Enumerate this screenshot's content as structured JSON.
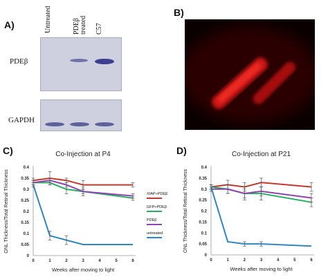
{
  "panels": {
    "A": {
      "label": "A)",
      "lanes": [
        "Untreated",
        "PDEβ treated",
        "C57"
      ],
      "rows": [
        "PDEβ",
        "GAPDH"
      ]
    },
    "B": {
      "label": "B)"
    },
    "C": {
      "label": "C)"
    },
    "D": {
      "label": "D)"
    }
  },
  "legend": {
    "entries": [
      {
        "name": "XIAP+PDEβ",
        "color": "#c0392b"
      },
      {
        "name": "GFP+PDEβ",
        "color": "#27ae60"
      },
      {
        "name": "PDEβ",
        "color": "#8e44ad"
      },
      {
        "name": "untreated",
        "color": "#2e86c1"
      }
    ]
  },
  "chart_data": [
    {
      "type": "line",
      "title": "Co-Injection at P4",
      "xlabel": "Weeks after moving to light",
      "ylabel": "ONL Thickness/Total Retinal Thickness",
      "ylim": [
        0,
        0.4
      ],
      "yticks": [
        0,
        0.05,
        0.1,
        0.15,
        0.2,
        0.25,
        0.3,
        0.35,
        0.4
      ],
      "xticks": [
        0,
        1,
        2,
        3,
        4,
        5,
        6
      ],
      "x": [
        0,
        1,
        2,
        3,
        6
      ],
      "series": [
        {
          "name": "XIAP+PDEβ",
          "color": "#c0392b",
          "values": [
            0.34,
            0.35,
            0.34,
            0.32,
            0.32
          ],
          "errors": [
            0.01,
            0.03,
            0.01,
            0.02,
            0.01
          ]
        },
        {
          "name": "GFP+PDEβ",
          "color": "#27ae60",
          "values": [
            0.33,
            0.33,
            0.3,
            0.29,
            0.26
          ],
          "errors": [
            0.01,
            0.01,
            0.02,
            0.01,
            0.01
          ]
        },
        {
          "name": "PDEβ",
          "color": "#8e44ad",
          "values": [
            0.33,
            0.34,
            0.32,
            0.29,
            0.27
          ],
          "errors": [
            0.01,
            0.01,
            0.01,
            0.02,
            0.01
          ]
        },
        {
          "name": "untreated",
          "color": "#2e86c1",
          "values": [
            0.32,
            0.09,
            0.07,
            0.05,
            0.05
          ],
          "errors": [
            0.01,
            0.02,
            0.02,
            0.0,
            0.0
          ]
        }
      ]
    },
    {
      "type": "line",
      "title": "Co-Injection at P21",
      "xlabel": "Weeks after moving to light",
      "ylabel": "ONL Thickness/Total Retinal Thickness",
      "ylim": [
        0,
        0.4
      ],
      "yticks": [
        0,
        0.05,
        0.1,
        0.15,
        0.2,
        0.25,
        0.3,
        0.35,
        0.4
      ],
      "xticks": [
        0,
        1,
        2,
        3,
        4,
        5,
        6
      ],
      "x": [
        0,
        1,
        2,
        3,
        6
      ],
      "series": [
        {
          "name": "XIAP+PDEβ",
          "color": "#c0392b",
          "values": [
            0.31,
            0.32,
            0.31,
            0.33,
            0.31
          ],
          "errors": [
            0.01,
            0.02,
            0.02,
            0.02,
            0.02
          ]
        },
        {
          "name": "GFP+PDEβ",
          "color": "#27ae60",
          "values": [
            0.31,
            0.3,
            0.28,
            0.28,
            0.24
          ],
          "errors": [
            0.01,
            0.02,
            0.03,
            0.03,
            0.02
          ]
        },
        {
          "name": "PDEβ",
          "color": "#8e44ad",
          "values": [
            0.3,
            0.3,
            0.28,
            0.29,
            0.26
          ],
          "errors": [
            0.01,
            0.02,
            0.02,
            0.02,
            0.02
          ]
        },
        {
          "name": "untreated",
          "color": "#2e86c1",
          "values": [
            0.31,
            0.06,
            0.05,
            0.05,
            0.04
          ],
          "errors": [
            0.01,
            0.0,
            0.01,
            0.01,
            0.0
          ]
        }
      ]
    }
  ]
}
